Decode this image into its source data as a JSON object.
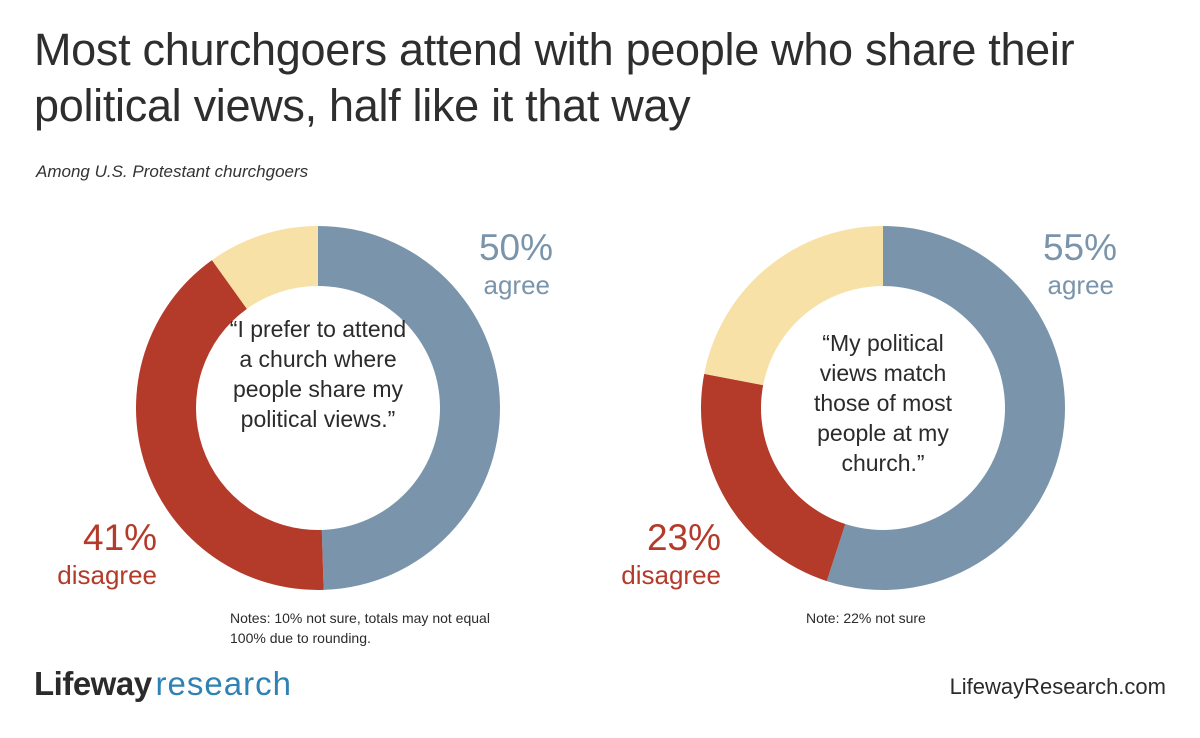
{
  "title": "Most churchgoers attend with people who share their political views, half like it that way",
  "subtitle": "Among U.S. Protestant churchgoers",
  "colors": {
    "agree": "#7a95ab",
    "disagree": "#b43a2a",
    "not_sure": "#f7e1a7"
  },
  "chart_data": [
    {
      "type": "pie",
      "style": "donut",
      "center_text": "“I prefer to attend a church where people share my political views.”",
      "slices": [
        {
          "name": "agree",
          "value": 50
        },
        {
          "name": "disagree",
          "value": 41
        },
        {
          "name": "not sure",
          "value": 10
        }
      ],
      "agree_pct": "50%",
      "agree_label": "agree",
      "disagree_pct": "41%",
      "disagree_label": "disagree",
      "note": "Notes: 10% not sure, totals may not equal 100% due to rounding."
    },
    {
      "type": "pie",
      "style": "donut",
      "center_text": "“My political views match those of most people at my church.”",
      "slices": [
        {
          "name": "agree",
          "value": 55
        },
        {
          "name": "disagree",
          "value": 23
        },
        {
          "name": "not sure",
          "value": 22
        }
      ],
      "agree_pct": "55%",
      "agree_label": "agree",
      "disagree_pct": "23%",
      "disagree_label": "disagree",
      "note": "Note: 22% not sure"
    }
  ],
  "footer": {
    "logo_brand": "Lifeway",
    "logo_sub": "research",
    "website": "LifewayResearch.com"
  }
}
